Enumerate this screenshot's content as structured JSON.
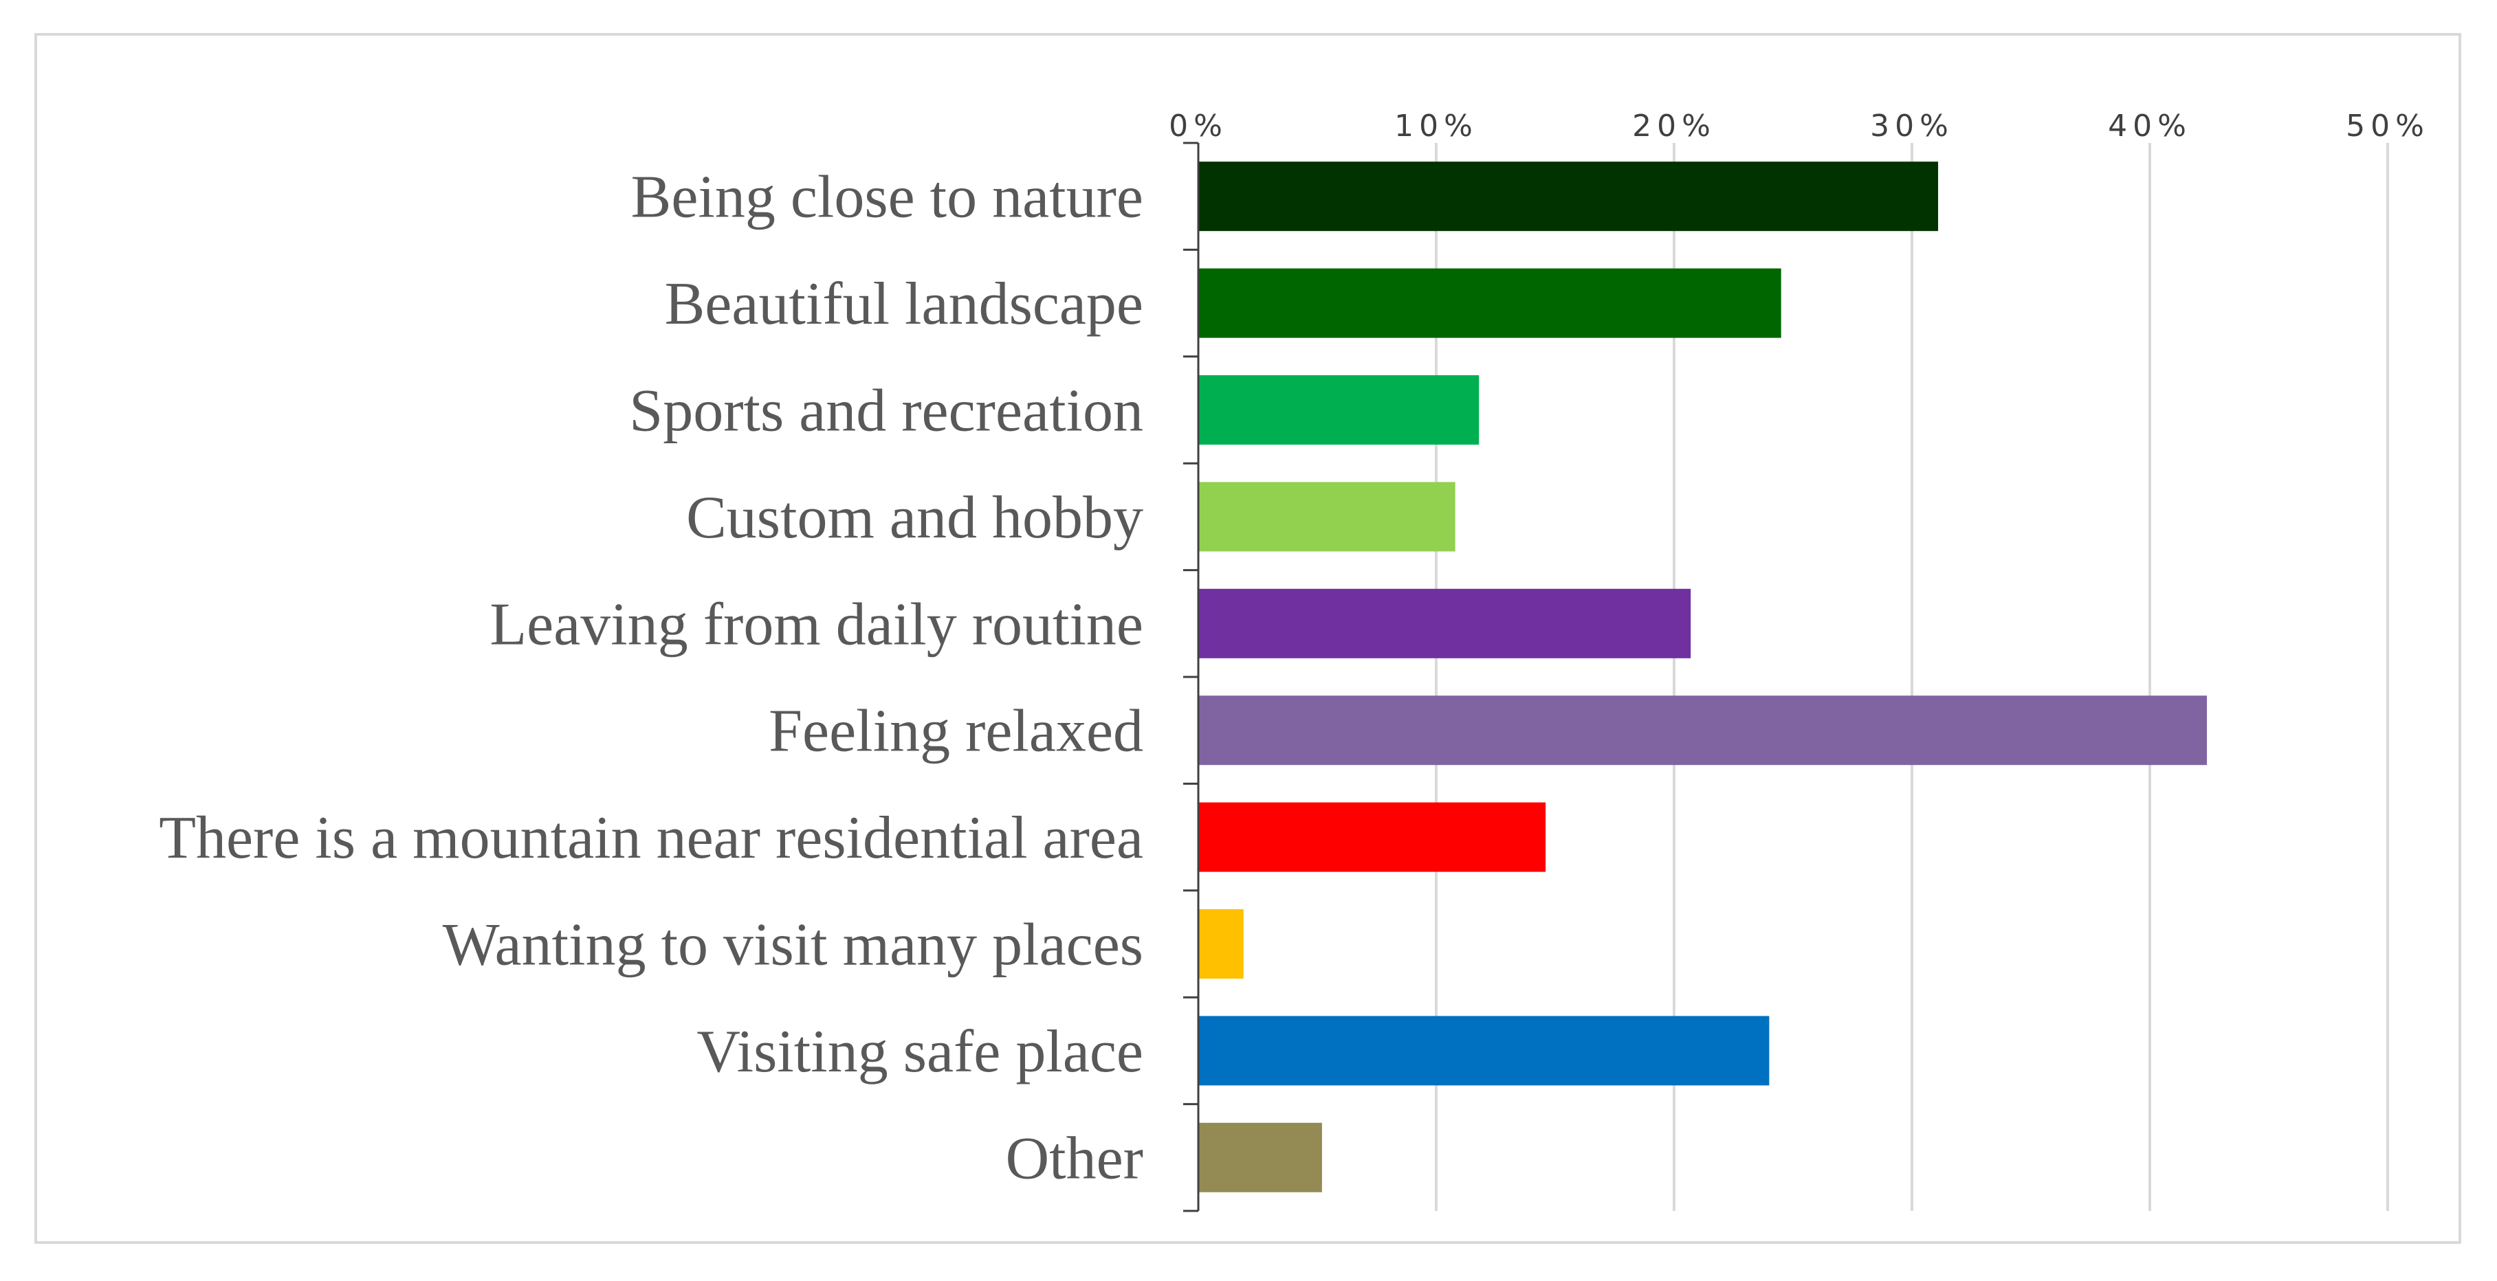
{
  "chart_data": {
    "type": "bar",
    "orientation": "horizontal",
    "title": "",
    "xlabel": "",
    "ylabel": "",
    "xlim": [
      0,
      50
    ],
    "x_ticks": [
      0,
      10,
      20,
      30,
      40,
      50
    ],
    "tick_format": "{v}%",
    "x_axis_position": "top",
    "grid": true,
    "legend": "none",
    "categories": [
      "Being close to nature",
      "Beautiful landscape",
      "Sports and recreation",
      "Custom and hobby",
      "Leaving from daily routine",
      "Feeling relaxed",
      "There is a mountain near residential area",
      "Wanting to visit many places",
      "Visiting safe place",
      "Other"
    ],
    "values": [
      31.1,
      24.5,
      11.8,
      10.8,
      20.7,
      42.4,
      14.6,
      1.9,
      24.0,
      5.2
    ],
    "colors": [
      "#003300",
      "#006600",
      "#00b050",
      "#92d050",
      "#7030a0",
      "#8064a2",
      "#ff0000",
      "#ffc000",
      "#0070c0",
      "#948a54"
    ]
  }
}
